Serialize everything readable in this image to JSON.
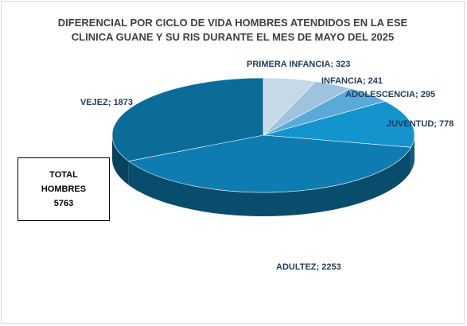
{
  "chart_data": {
    "type": "pie",
    "title_lines": [
      "DIFERENCIAL POR CICLO DE VIDA HOMBRES ATENDIDOS EN LA ESE",
      "CLINICA  GUANE Y SU RIS  DURANTE EL MES DE MAYO DEL  2025"
    ],
    "categories": [
      "PRIMERA INFANCIA",
      "INFANCIA",
      "ADOLESCENCIA",
      "JUVENTUD",
      "ADULTEZ",
      "VEJEZ"
    ],
    "values": [
      323,
      241,
      295,
      778,
      2253,
      1873
    ],
    "data_labels": [
      "PRIMERA INFANCIA;  323",
      "INFANCIA; 241",
      "ADOLESCENCIA; 295",
      "JUVENTUD; 778",
      "ADULTEZ; 2253",
      "VEJEZ; 1873"
    ],
    "colors": [
      "#c5d9e8",
      "#9dc3de",
      "#5aaad8",
      "#1394cc",
      "#0e7cb0",
      "#0b6c9a"
    ],
    "legend": "none",
    "style": "3d-pie"
  },
  "total_box": {
    "line1": "TOTAL",
    "line2": "HOMBRES",
    "line3": "5763"
  }
}
